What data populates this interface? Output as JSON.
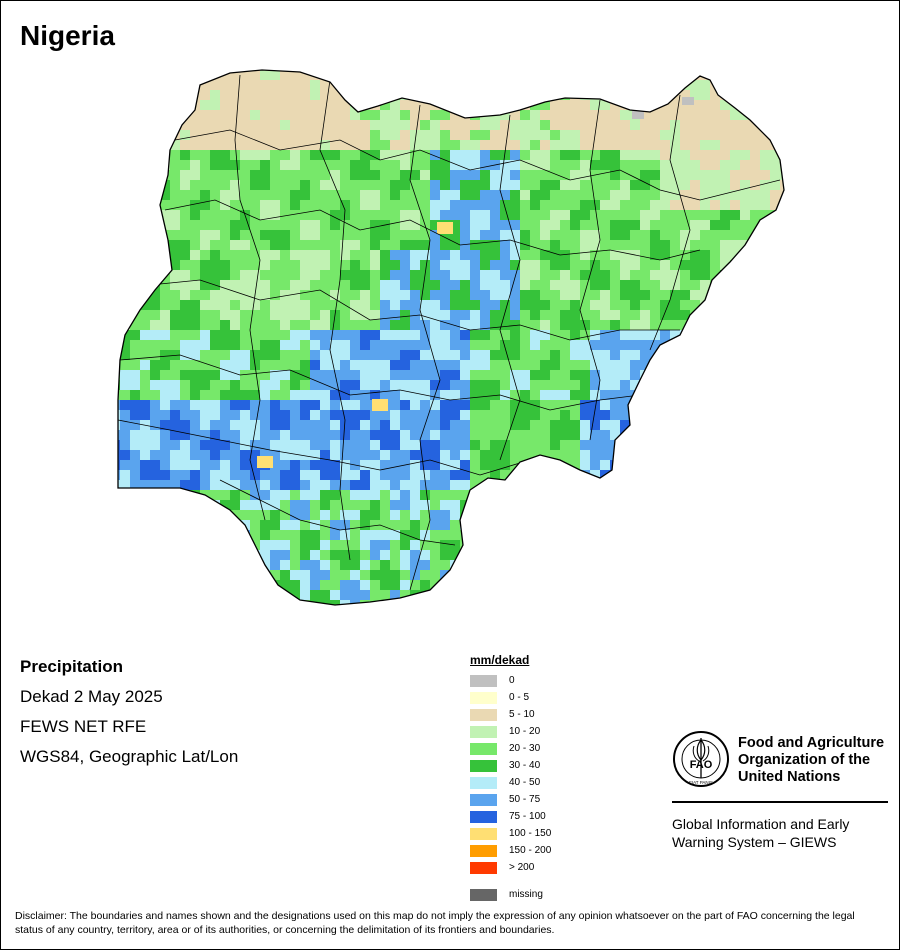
{
  "map": {
    "title": "Nigeria",
    "variable": "Precipitation",
    "period": "Dekad 2 May 2025",
    "source": "FEWS NET RFE",
    "projection": "WGS84, Geographic Lat/Lon"
  },
  "legend": {
    "title": "mm/dekad",
    "items": [
      {
        "label": "0",
        "color": "#c0c0c0"
      },
      {
        "label": "0 - 5",
        "color": "#ffffcc"
      },
      {
        "label": "5 - 10",
        "color": "#ead9b3"
      },
      {
        "label": "10 - 20",
        "color": "#c1f2b3"
      },
      {
        "label": "20 - 30",
        "color": "#77e86a"
      },
      {
        "label": "30 - 40",
        "color": "#36c23a"
      },
      {
        "label": "40 - 50",
        "color": "#b4ecf8"
      },
      {
        "label": "50 - 75",
        "color": "#5aa4ee"
      },
      {
        "label": "75 - 100",
        "color": "#2563df"
      },
      {
        "label": "100 - 150",
        "color": "#ffdf73"
      },
      {
        "label": "150 - 200",
        "color": "#ff9d00"
      },
      {
        "label": "> 200",
        "color": "#ff3a00"
      }
    ],
    "missing": {
      "label": "missing",
      "color": "#666666"
    }
  },
  "organization": {
    "name": "Food and Agriculture Organization of the United Nations",
    "system": "Global Information and Early Warning System – GIEWS",
    "logo_text": "FAO",
    "logo_motto": "FIAT PANIS"
  },
  "disclaimer": "Disclaimer: The boundaries and names shown and the designations used on this map do not imply the expression of any opinion whatsoever on the part of FAO concerning the legal status of any country, territory, area or of its authorities, or concerning the delimitation of its frontiers and boundaries."
}
